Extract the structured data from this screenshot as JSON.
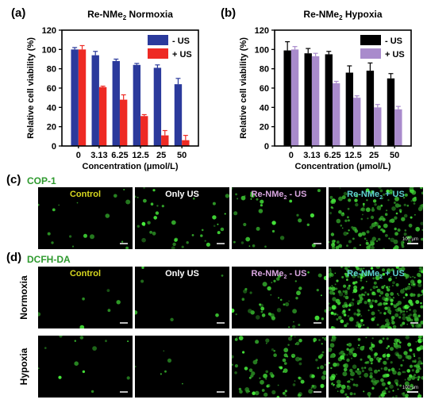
{
  "panels": {
    "a": "(a)",
    "b": "(b)",
    "c": "(c)",
    "d": "(d)"
  },
  "chart_data": [
    {
      "type": "bar",
      "title": "Re-NMe2 Normoxia",
      "title_parts": {
        "pre": "Re-NMe",
        "sub": "2",
        "post": " Normoxia"
      },
      "xlabel": "Concentration (μmol/L)",
      "ylabel": "Relative cell viability (%)",
      "categories": [
        "0",
        "3.13",
        "6.25",
        "12.5",
        "25",
        "50"
      ],
      "ylim": [
        0,
        120
      ],
      "yticks": [
        "0",
        "20",
        "40",
        "60",
        "80",
        "100",
        "120"
      ],
      "legend_position": "top-right",
      "series": [
        {
          "name": "- US",
          "color": "#2b3a9c",
          "values": [
            100,
            94,
            88,
            84,
            81,
            64
          ],
          "errors": [
            2,
            4,
            2,
            1.5,
            3,
            6
          ]
        },
        {
          "name": "+ US",
          "color": "#ee2a24",
          "values": [
            100,
            61,
            48,
            31,
            11,
            6
          ],
          "errors": [
            4,
            1,
            5,
            1.5,
            5,
            5
          ]
        }
      ]
    },
    {
      "type": "bar",
      "title": "Re-NMe2 Hypoxia",
      "title_parts": {
        "pre": "Re-NMe",
        "sub": "2",
        "post": "  Hypoxia"
      },
      "xlabel": "Concentration (μmol/L)",
      "ylabel": "Relative cell viability (%)",
      "categories": [
        "0",
        "3.13",
        "6.25",
        "12.5",
        "25",
        "50"
      ],
      "ylim": [
        0,
        120
      ],
      "yticks": [
        "0",
        "20",
        "40",
        "60",
        "80",
        "100",
        "120"
      ],
      "legend_position": "top-right",
      "series": [
        {
          "name": "- US",
          "color": "#000000",
          "values": [
            99,
            96,
            95,
            76,
            78,
            70
          ],
          "errors": [
            9,
            5,
            3,
            7,
            8,
            5
          ]
        },
        {
          "name": "+ US",
          "color": "#a98bcc",
          "values": [
            100,
            93,
            65,
            50,
            40,
            38
          ],
          "errors": [
            3,
            3,
            2,
            2,
            3,
            3
          ]
        }
      ]
    }
  ],
  "panel_c": {
    "stain": "COP-1",
    "columns": [
      {
        "label": "Control",
        "color": "#d8d820",
        "fluorescence": 0.05
      },
      {
        "label": "Only US",
        "color": "#ffffff",
        "fluorescence": 0.12
      },
      {
        "label": "Re-NMe2 - US",
        "pre": "Re-NMe",
        "sub": "2",
        "post": " - US",
        "color": "#d9a6e0",
        "fluorescence": 0.1
      },
      {
        "label": "Re-NMe2 + US",
        "pre": "Re-NMe",
        "sub": "2",
        "post": " + US",
        "color": "#5fd0d0",
        "fluorescence": 0.55
      }
    ],
    "scalebar": "100 μm"
  },
  "panel_d": {
    "stain": "DCFH-DA",
    "columns": [
      {
        "label": "Control",
        "color": "#d8d820"
      },
      {
        "label": "Only US",
        "color": "#ffffff"
      },
      {
        "label": "Re-NMe2 - US",
        "pre": "Re-NMe",
        "sub": "2",
        "post": " - US",
        "color": "#d9a6e0"
      },
      {
        "label": "Re-NMe2 + US",
        "pre": "Re-NMe",
        "sub": "2",
        "post": " + US",
        "color": "#5fd0d0"
      }
    ],
    "rows": [
      {
        "label": "Normoxia",
        "fluorescence": [
          0.02,
          0.02,
          0.15,
          0.9
        ]
      },
      {
        "label": "Hypoxia",
        "fluorescence": [
          0.04,
          0.02,
          0.3,
          0.75
        ]
      }
    ],
    "scalebar": "100 μm"
  }
}
